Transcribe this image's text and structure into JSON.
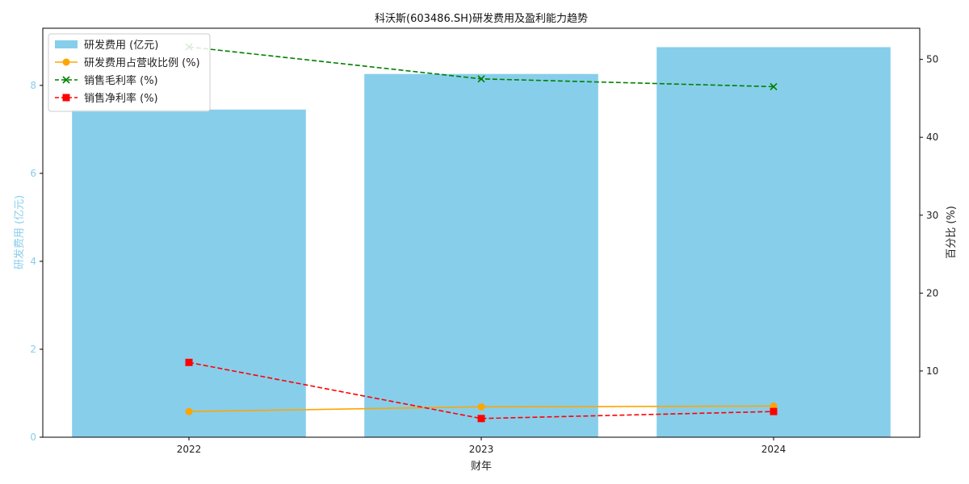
{
  "chart_data": {
    "type": "bar",
    "title": "科沃斯(603486.SH)研发费用及盈利能力趋势",
    "xlabel": "财年",
    "ylabel_left": "研发费用 (亿元)",
    "ylabel_right": "百分比 (%)",
    "categories": [
      "2022",
      "2023",
      "2024"
    ],
    "ylim_left": [
      0,
      9.3
    ],
    "yticks_left": [
      "0",
      "2",
      "4",
      "6",
      "8"
    ],
    "ylim_right": [
      1.5,
      54
    ],
    "yticks_right": [
      "10",
      "20",
      "30",
      "40",
      "50"
    ],
    "legend_position": "top-left",
    "bars": {
      "name": "研发费用 (亿元)",
      "values": [
        7.45,
        8.26,
        8.87
      ],
      "color": "#87CEEB"
    },
    "lines": [
      {
        "name": "研发费用占营收比例 (%)",
        "values": [
          4.8,
          5.4,
          5.5
        ],
        "color": "#FFA500",
        "marker": "circle",
        "dash": "solid"
      },
      {
        "name": "销售毛利率 (%)",
        "values": [
          51.6,
          47.5,
          46.5
        ],
        "color": "#008000",
        "marker": "x",
        "dash": "dashed"
      },
      {
        "name": "销售净利率 (%)",
        "values": [
          11.1,
          3.9,
          4.8
        ],
        "color": "#FF0000",
        "marker": "square",
        "dash": "dashed"
      }
    ]
  }
}
